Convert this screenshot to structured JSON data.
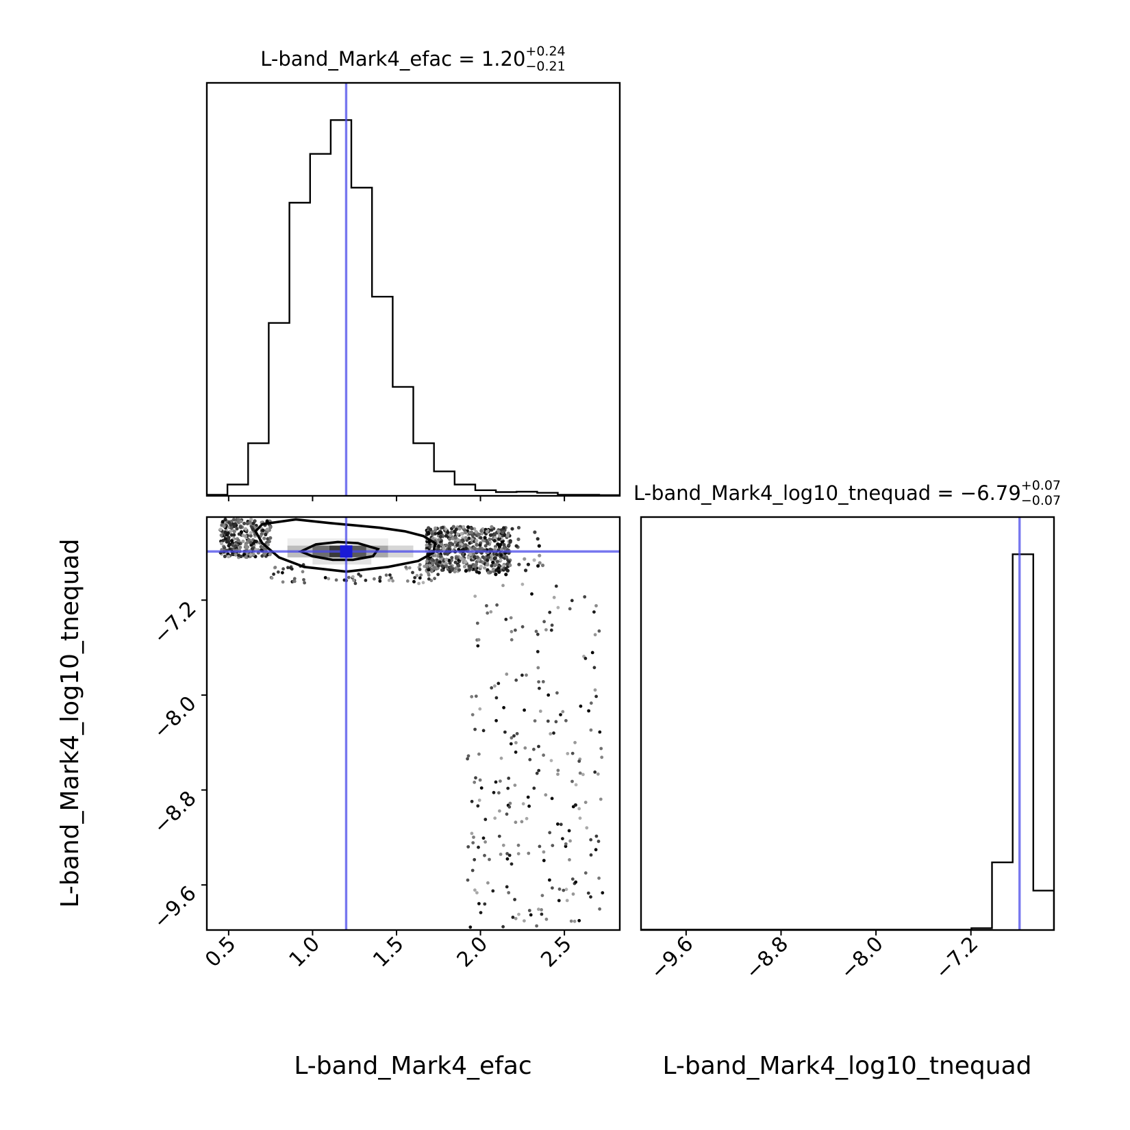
{
  "chart_data": {
    "type": "corner",
    "parameters": [
      "L-band_Mark4_efac",
      "L-band_Mark4_log10_tnequad"
    ],
    "titles": [
      {
        "label": "L-band_Mark4_efac",
        "median": "1.20",
        "plus": "+0.24",
        "minus": "−0.21"
      },
      {
        "label": "L-band_Mark4_log10_tnequad",
        "median": "−6.79",
        "plus": "+0.07",
        "minus": "−0.07"
      }
    ],
    "xlabels": [
      "L-band_Mark4_efac",
      "L-band_Mark4_log10_tnequad"
    ],
    "ylabel": "L-band_Mark4_log10_tnequad",
    "ranges": {
      "efac": [
        0.37,
        2.83
      ],
      "tnequad": [
        -9.98,
        -6.5
      ]
    },
    "ticks": {
      "efac": {
        "values": [
          0.5,
          1.0,
          1.5,
          2.0,
          2.5
        ],
        "labels": [
          "0.5",
          "1.0",
          "1.5",
          "2.0",
          "2.5"
        ]
      },
      "tnequad": {
        "values": [
          -9.6,
          -8.8,
          -8.0,
          -7.2
        ],
        "labels": [
          "−9.6",
          "−8.8",
          "−8.0",
          "−7.2"
        ]
      }
    },
    "truth": {
      "efac": 1.2,
      "tnequad": -6.79
    },
    "truth_color": "#4a4aea",
    "hist_efac": {
      "edges": [
        0.37,
        0.493,
        0.616,
        0.739,
        0.862,
        0.985,
        1.108,
        1.231,
        1.354,
        1.477,
        1.6,
        1.723,
        1.846,
        1.969,
        2.092,
        2.215,
        2.338,
        2.461,
        2.584,
        2.707,
        2.83
      ],
      "counts": [
        0.3,
        3,
        14,
        46,
        78,
        91,
        100,
        82,
        53,
        29,
        14,
        6.5,
        3,
        1.5,
        1,
        1.1,
        0.8,
        0.3,
        0.3,
        0.2
      ]
    },
    "hist_tnequad": {
      "edges": [
        -9.98,
        -9.806,
        -9.632,
        -9.458,
        -9.284,
        -9.11,
        -8.936,
        -8.762,
        -8.588,
        -8.414,
        -8.24,
        -8.066,
        -7.892,
        -7.718,
        -7.544,
        -7.37,
        -7.196,
        -7.022,
        -6.848,
        -6.674,
        -6.5
      ],
      "counts": [
        0.1,
        0.1,
        0.1,
        0.1,
        0.1,
        0.1,
        0.1,
        0.1,
        0.1,
        0.1,
        0.1,
        0.1,
        0.1,
        0.1,
        0.1,
        0.1,
        0.5,
        18,
        100,
        10.5
      ]
    },
    "contours": [
      {
        "level": "outer",
        "points": [
          [
            0.7,
            -6.56
          ],
          [
            0.9,
            -6.52
          ],
          [
            1.1,
            -6.55
          ],
          [
            1.25,
            -6.57
          ],
          [
            1.4,
            -6.59
          ],
          [
            1.55,
            -6.62
          ],
          [
            1.66,
            -6.66
          ],
          [
            1.73,
            -6.72
          ],
          [
            1.72,
            -6.8
          ],
          [
            1.63,
            -6.87
          ],
          [
            1.45,
            -6.92
          ],
          [
            1.2,
            -6.96
          ],
          [
            0.95,
            -6.92
          ],
          [
            0.8,
            -6.84
          ],
          [
            0.7,
            -6.72
          ],
          [
            0.66,
            -6.62
          ]
        ]
      },
      {
        "level": "inner",
        "points": [
          [
            0.93,
            -6.79
          ],
          [
            1.02,
            -6.73
          ],
          [
            1.15,
            -6.71
          ],
          [
            1.27,
            -6.72
          ],
          [
            1.39,
            -6.77
          ],
          [
            1.36,
            -6.83
          ],
          [
            1.24,
            -6.86
          ],
          [
            1.12,
            -6.86
          ],
          [
            1.0,
            -6.83
          ]
        ]
      }
    ]
  }
}
